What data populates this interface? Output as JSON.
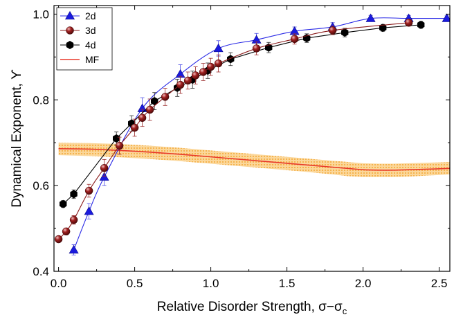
{
  "chart_data": {
    "type": "scatter",
    "xlabel": "Relative Disorder Strength, σ−σ",
    "xlabel_sub": "c",
    "ylabel": "Dynamical Exponent, ϒ",
    "xlim": [
      -0.03,
      2.57
    ],
    "ylim": [
      0.4,
      1.02
    ],
    "x_ticks": [
      0.0,
      0.5,
      1.0,
      1.5,
      2.0,
      2.5
    ],
    "x_tick_labels": [
      "0.0",
      "0.5",
      "1.0",
      "1.5",
      "2.0",
      "2.5"
    ],
    "y_ticks": [
      0.4,
      0.6,
      0.8,
      1.0
    ],
    "y_tick_labels": [
      "0.4",
      "0.6",
      "0.8",
      "1.0"
    ],
    "grid": false,
    "legend_position": "top-left",
    "series": [
      {
        "name": "2d",
        "color": "#1a1adf",
        "marker": "triangle",
        "x": [
          0.1,
          0.2,
          0.3,
          0.55,
          0.8,
          1.05,
          1.3,
          1.55,
          1.8,
          2.05,
          2.3,
          2.55
        ],
        "y": [
          0.45,
          0.54,
          0.62,
          0.78,
          0.86,
          0.92,
          0.94,
          0.96,
          0.97,
          0.99,
          0.99,
          0.99
        ],
        "err": [
          0.012,
          0.018,
          0.02,
          0.025,
          0.022,
          0.018,
          0.015,
          0.01,
          0.01,
          0.007,
          0.007,
          0.006
        ]
      },
      {
        "name": "3d",
        "color": "#7d1212",
        "marker": "sphere",
        "x": [
          0.0,
          0.05,
          0.1,
          0.2,
          0.3,
          0.4,
          0.5,
          0.55,
          0.6,
          0.7,
          0.8,
          0.85,
          0.9,
          0.95,
          1.0,
          1.05,
          1.3,
          1.55,
          1.8,
          2.3
        ],
        "y": [
          0.475,
          0.493,
          0.52,
          0.588,
          0.641,
          0.693,
          0.735,
          0.758,
          0.777,
          0.807,
          0.835,
          0.845,
          0.857,
          0.865,
          0.877,
          0.885,
          0.92,
          0.942,
          0.962,
          0.98
        ],
        "err": [
          0.007,
          0.008,
          0.01,
          0.015,
          0.02,
          0.02,
          0.02,
          0.02,
          0.025,
          0.02,
          0.02,
          0.02,
          0.02,
          0.02,
          0.02,
          0.02,
          0.015,
          0.012,
          0.01,
          0.008
        ]
      },
      {
        "name": "4d",
        "color": "#000000",
        "marker": "hexagon",
        "x": [
          0.03,
          0.1,
          0.38,
          0.48,
          0.63,
          0.78,
          0.88,
          0.98,
          1.13,
          1.38,
          1.63,
          1.88,
          2.13,
          2.38
        ],
        "y": [
          0.557,
          0.58,
          0.71,
          0.745,
          0.797,
          0.828,
          0.847,
          0.868,
          0.895,
          0.922,
          0.944,
          0.957,
          0.968,
          0.975
        ],
        "err": [
          0.008,
          0.01,
          0.015,
          0.018,
          0.02,
          0.02,
          0.02,
          0.018,
          0.015,
          0.012,
          0.01,
          0.01,
          0.008,
          0.008
        ]
      },
      {
        "name": "MF",
        "color": "#e8382a",
        "marker": "line",
        "band_color": "#f5a623",
        "x": [
          0.0,
          0.2,
          0.4,
          0.6,
          0.8,
          1.0,
          1.2,
          1.4,
          1.6,
          1.8,
          1.9,
          2.0,
          2.1,
          2.2,
          2.3,
          2.4,
          2.57
        ],
        "y": [
          0.686,
          0.685,
          0.682,
          0.678,
          0.673,
          0.667,
          0.661,
          0.655,
          0.649,
          0.643,
          0.64,
          0.637,
          0.636,
          0.636,
          0.637,
          0.638,
          0.64
        ],
        "band_low": [
          0.671,
          0.669,
          0.666,
          0.662,
          0.657,
          0.651,
          0.645,
          0.639,
          0.633,
          0.626,
          0.622,
          0.62,
          0.62,
          0.62,
          0.621,
          0.623,
          0.626
        ],
        "band_high": [
          0.7,
          0.699,
          0.697,
          0.693,
          0.688,
          0.682,
          0.676,
          0.67,
          0.664,
          0.658,
          0.655,
          0.652,
          0.651,
          0.651,
          0.652,
          0.653,
          0.655
        ]
      }
    ]
  }
}
